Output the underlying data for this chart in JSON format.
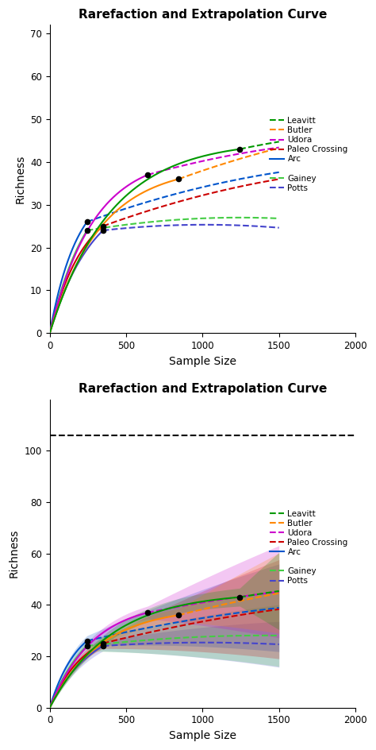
{
  "title": "Rarefaction and Extrapolation Curve",
  "xlabel": "Sample Size",
  "ylabel": "Richness",
  "panel1": {
    "ylim": [
      0,
      72
    ],
    "yticks": [
      0,
      10,
      20,
      30,
      40,
      50,
      60,
      70
    ],
    "xlim": [
      0,
      2000
    ],
    "xticks": [
      0,
      500,
      1000,
      1500,
      2000
    ]
  },
  "panel2": {
    "ylim": [
      0,
      120
    ],
    "yticks": [
      0,
      20,
      40,
      60,
      80,
      100
    ],
    "xlim": [
      0,
      2000
    ],
    "xticks": [
      0,
      500,
      1000,
      1500,
      2000
    ],
    "hline_y": 106
  },
  "sites": [
    {
      "name": "Leavitt",
      "color": "#009900",
      "xobs": 1243,
      "yobs": 43,
      "curv": 0.0025,
      "slope1": 0.0075,
      "slope2": 0.01,
      "ci_rare": 3.5,
      "ci_extrap": 0.045,
      "xmax": 1500,
      "legend_style": "dashed"
    },
    {
      "name": "Butler",
      "color": "#FF8800",
      "xobs": 843,
      "yobs": 36,
      "curv": 0.003,
      "slope1": 0.013,
      "slope2": 0.015,
      "ci_rare": 2.5,
      "ci_extrap": 0.02,
      "xmax": 1500,
      "legend_style": "dashed"
    },
    {
      "name": "Udora",
      "color": "#CC00CC",
      "xobs": 641,
      "yobs": 37,
      "curv": 0.0035,
      "slope1": 0.01,
      "slope2": 0.012,
      "ci_rare": 2.5,
      "ci_extrap": 0.018,
      "xmax": 1500,
      "legend_style": "dashed"
    },
    {
      "name": "Paleo Crossing",
      "color": "#CC0000",
      "xobs": 348,
      "yobs": 25,
      "curv": 0.0045,
      "slope1": 0.013,
      "slope2": 0.015,
      "ci_rare": 2.0,
      "ci_extrap": 0.015,
      "xmax": 1500,
      "legend_style": "dashed"
    },
    {
      "name": "Arc",
      "color": "#0055CC",
      "xobs": 244,
      "yobs": 26,
      "curv": 0.0055,
      "slope1": 0.013,
      "slope2": 0.014,
      "ci_rare": 2.0,
      "ci_extrap": 0.012,
      "xmax": 1500,
      "legend_style": "solid"
    },
    {
      "name": "Gainey",
      "color": "#44CC44",
      "xobs": 244,
      "yobs": 24,
      "curv": 0.004,
      "slope1": 0.006,
      "slope2": 0.007,
      "ci_rare": 2.0,
      "ci_extrap": 0.008,
      "xmax": 1500,
      "legend_style": "dashed"
    },
    {
      "name": "Potts",
      "color": "#4444CC",
      "xobs": 348,
      "yobs": 24,
      "curv": 0.0035,
      "slope1": 0.004,
      "slope2": 0.004,
      "ci_rare": 2.0,
      "ci_extrap": 0.006,
      "xmax": 1500,
      "legend_style": "dashed"
    }
  ]
}
